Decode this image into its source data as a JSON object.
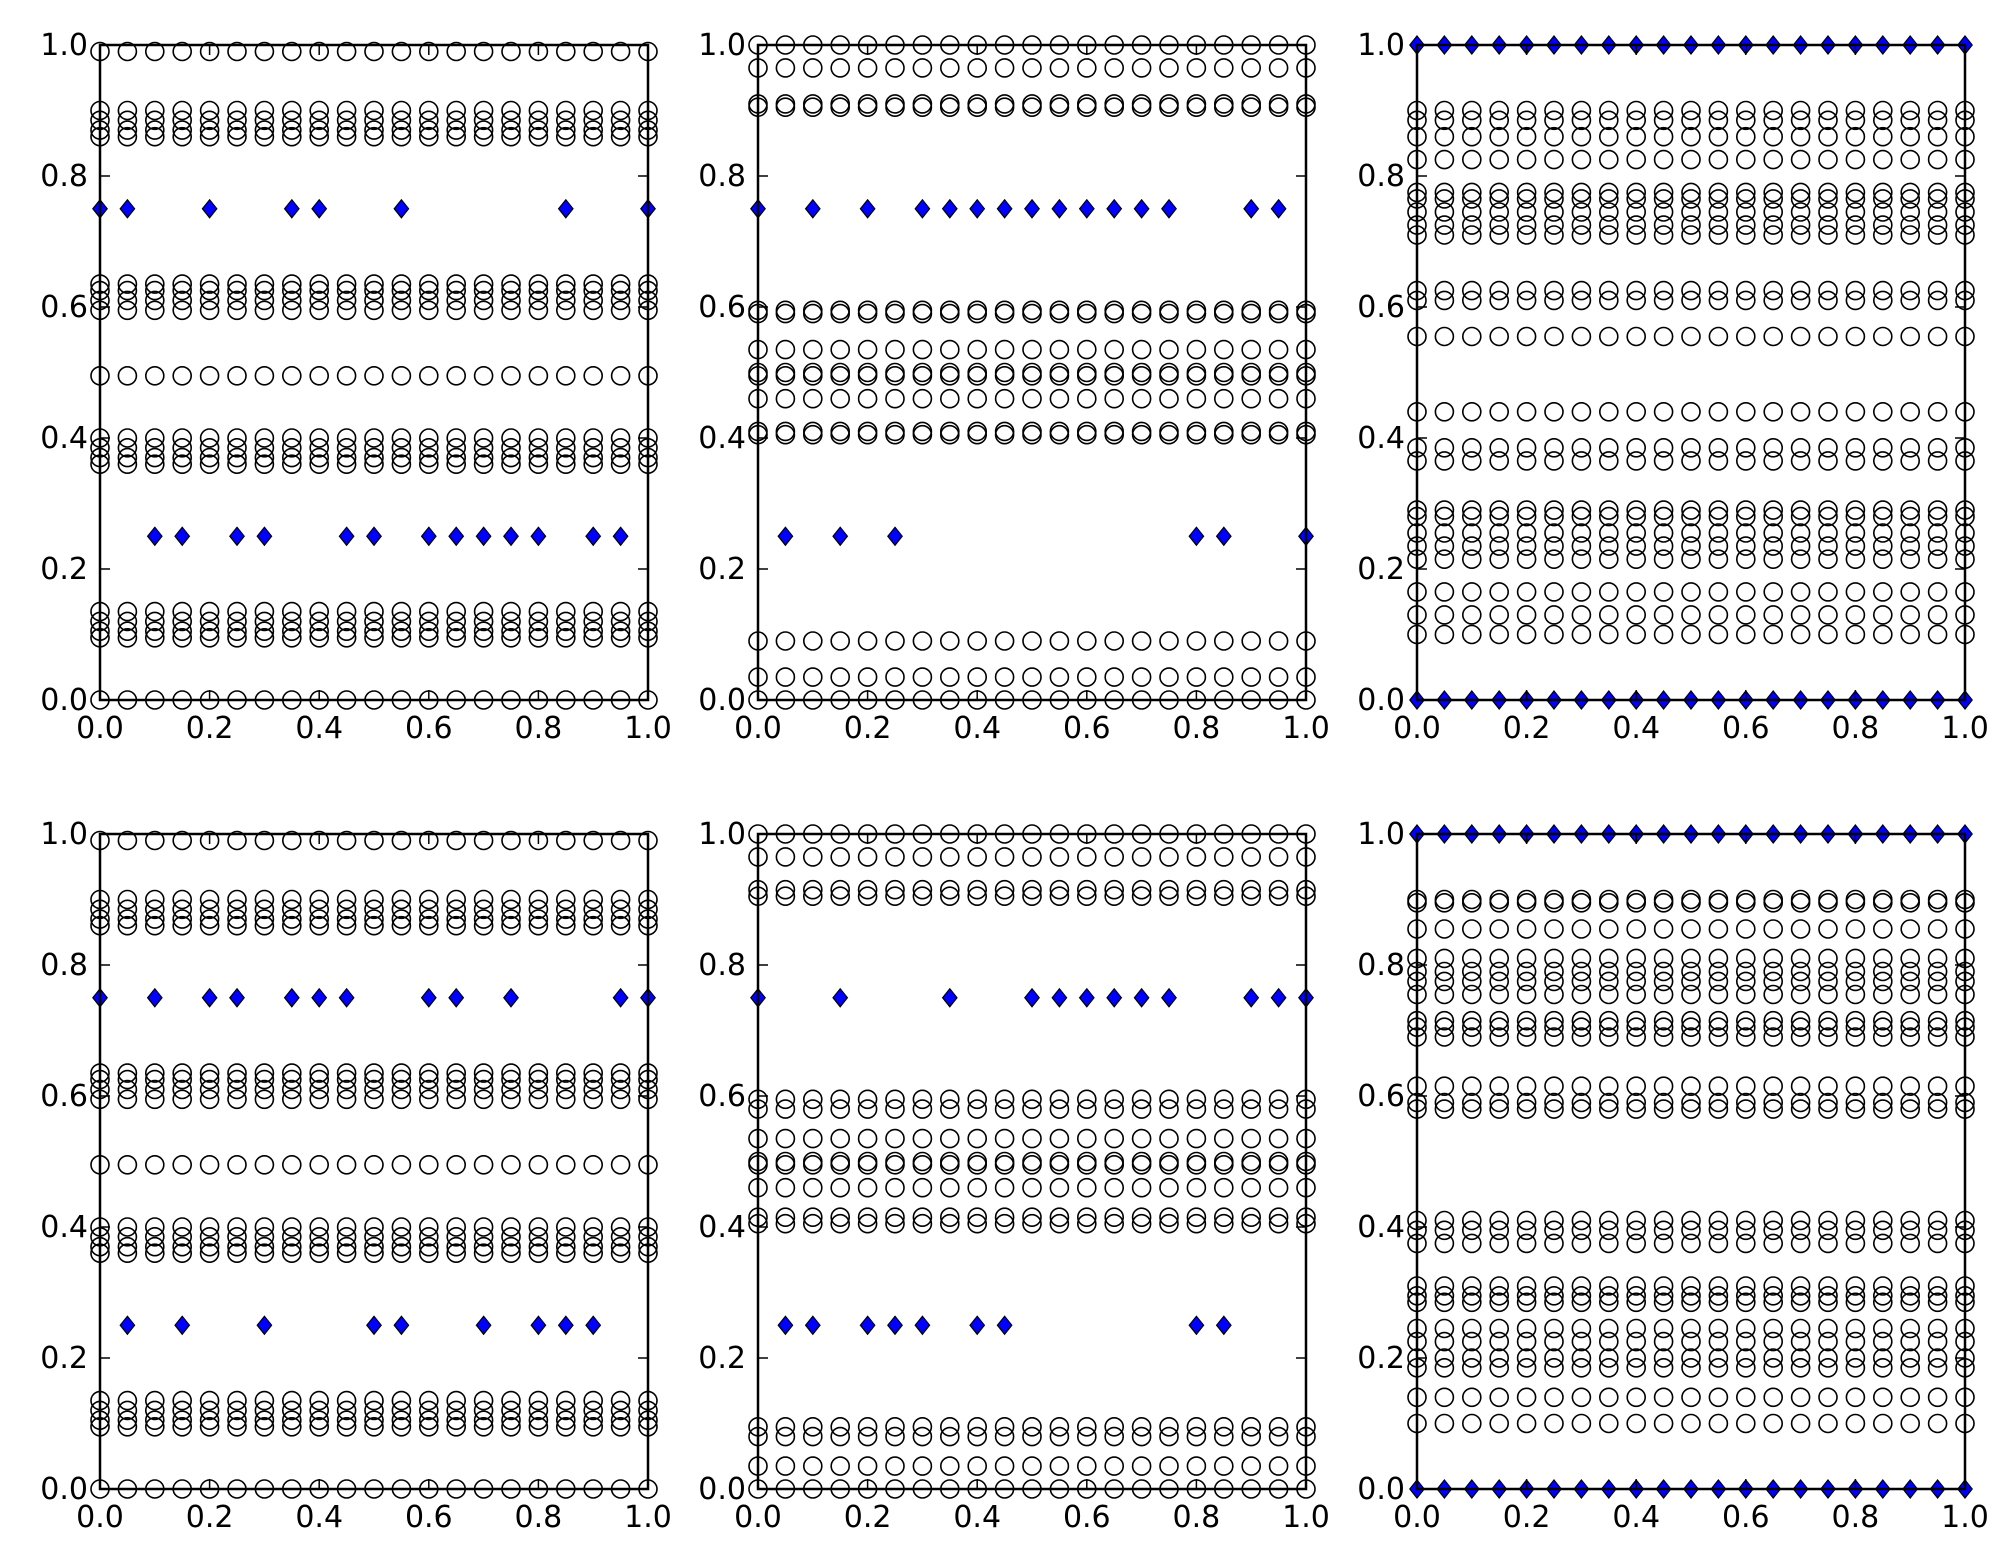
{
  "figure": {
    "background": "#ffffff",
    "axis_color": "#000000"
  },
  "marker_style": {
    "circle": {
      "shape": "circle",
      "fill": "none",
      "stroke": "#000000"
    },
    "diamond": {
      "shape": "diamond",
      "fill": "#0000ff",
      "stroke": "#000000"
    }
  },
  "chart_data": [
    {
      "type": "scatter",
      "panel": "top-left",
      "xlim": [
        0,
        1
      ],
      "ylim": [
        0,
        1
      ],
      "xticks": [
        "0.0",
        "0.2",
        "0.4",
        "0.6",
        "0.8",
        "1.0"
      ],
      "yticks": [
        "0.0",
        "0.2",
        "0.4",
        "0.6",
        "0.8",
        "1.0"
      ],
      "x": [
        0.0,
        0.05,
        0.1,
        0.15,
        0.2,
        0.25,
        0.3,
        0.35,
        0.4,
        0.45,
        0.5,
        0.55,
        0.6,
        0.65,
        0.7,
        0.75,
        0.8,
        0.85,
        0.9,
        0.95,
        1.0
      ],
      "circle_levels_y": [
        0.0,
        0.095,
        0.105,
        0.12,
        0.135,
        0.36,
        0.37,
        0.385,
        0.4,
        0.495,
        0.595,
        0.61,
        0.625,
        0.635,
        0.86,
        0.87,
        0.885,
        0.9,
        0.99
      ],
      "diamond_points": [
        {
          "x": 0.0,
          "y": 0.75
        },
        {
          "x": 0.05,
          "y": 0.75
        },
        {
          "x": 0.2,
          "y": 0.75
        },
        {
          "x": 0.35,
          "y": 0.75
        },
        {
          "x": 0.4,
          "y": 0.75
        },
        {
          "x": 0.55,
          "y": 0.75
        },
        {
          "x": 0.85,
          "y": 0.75
        },
        {
          "x": 1.0,
          "y": 0.75
        },
        {
          "x": 0.1,
          "y": 0.25
        },
        {
          "x": 0.15,
          "y": 0.25
        },
        {
          "x": 0.25,
          "y": 0.25
        },
        {
          "x": 0.3,
          "y": 0.25
        },
        {
          "x": 0.45,
          "y": 0.25
        },
        {
          "x": 0.5,
          "y": 0.25
        },
        {
          "x": 0.6,
          "y": 0.25
        },
        {
          "x": 0.65,
          "y": 0.25
        },
        {
          "x": 0.7,
          "y": 0.25
        },
        {
          "x": 0.75,
          "y": 0.25
        },
        {
          "x": 0.8,
          "y": 0.25
        },
        {
          "x": 0.9,
          "y": 0.25
        },
        {
          "x": 0.95,
          "y": 0.25
        }
      ]
    },
    {
      "type": "scatter",
      "panel": "top-middle",
      "xlim": [
        0,
        1
      ],
      "ylim": [
        0,
        1
      ],
      "xticks": [
        "0.0",
        "0.2",
        "0.4",
        "0.6",
        "0.8",
        "1.0"
      ],
      "yticks": [
        "0.0",
        "0.2",
        "0.4",
        "0.6",
        "0.8",
        "1.0"
      ],
      "x": [
        0.0,
        0.05,
        0.1,
        0.15,
        0.2,
        0.25,
        0.3,
        0.35,
        0.4,
        0.45,
        0.5,
        0.55,
        0.6,
        0.65,
        0.7,
        0.75,
        0.8,
        0.85,
        0.9,
        0.95,
        1.0
      ],
      "circle_levels_y": [
        0.0,
        0.035,
        0.09,
        0.405,
        0.41,
        0.46,
        0.495,
        0.5,
        0.535,
        0.59,
        0.595,
        0.905,
        0.91,
        0.965,
        1.0
      ],
      "diamond_points": [
        {
          "x": 0.0,
          "y": 0.75
        },
        {
          "x": 0.1,
          "y": 0.75
        },
        {
          "x": 0.2,
          "y": 0.75
        },
        {
          "x": 0.3,
          "y": 0.75
        },
        {
          "x": 0.35,
          "y": 0.75
        },
        {
          "x": 0.4,
          "y": 0.75
        },
        {
          "x": 0.45,
          "y": 0.75
        },
        {
          "x": 0.5,
          "y": 0.75
        },
        {
          "x": 0.55,
          "y": 0.75
        },
        {
          "x": 0.6,
          "y": 0.75
        },
        {
          "x": 0.65,
          "y": 0.75
        },
        {
          "x": 0.7,
          "y": 0.75
        },
        {
          "x": 0.75,
          "y": 0.75
        },
        {
          "x": 0.9,
          "y": 0.75
        },
        {
          "x": 0.95,
          "y": 0.75
        },
        {
          "x": 0.05,
          "y": 0.25
        },
        {
          "x": 0.15,
          "y": 0.25
        },
        {
          "x": 0.25,
          "y": 0.25
        },
        {
          "x": 0.8,
          "y": 0.25
        },
        {
          "x": 0.85,
          "y": 0.25
        },
        {
          "x": 1.0,
          "y": 0.25
        }
      ]
    },
    {
      "type": "scatter",
      "panel": "top-right",
      "xlim": [
        0,
        1
      ],
      "ylim": [
        0,
        1
      ],
      "xticks": [
        "0.0",
        "0.2",
        "0.4",
        "0.6",
        "0.8",
        "1.0"
      ],
      "yticks": [
        "0.0",
        "0.2",
        "0.4",
        "0.6",
        "0.8",
        "1.0"
      ],
      "x": [
        0.0,
        0.05,
        0.1,
        0.15,
        0.2,
        0.25,
        0.3,
        0.35,
        0.4,
        0.45,
        0.5,
        0.55,
        0.6,
        0.65,
        0.7,
        0.75,
        0.8,
        0.85,
        0.9,
        0.95,
        1.0
      ],
      "circle_levels_y": [
        0.1,
        0.13,
        0.165,
        0.215,
        0.235,
        0.255,
        0.28,
        0.29,
        0.365,
        0.385,
        0.44,
        0.555,
        0.61,
        0.625,
        0.71,
        0.725,
        0.745,
        0.765,
        0.775,
        0.825,
        0.86,
        0.885,
        0.9
      ],
      "diamond_points": [
        {
          "x": 0.0,
          "y": 1.0
        },
        {
          "x": 0.05,
          "y": 1.0
        },
        {
          "x": 0.1,
          "y": 1.0
        },
        {
          "x": 0.15,
          "y": 1.0
        },
        {
          "x": 0.2,
          "y": 1.0
        },
        {
          "x": 0.25,
          "y": 1.0
        },
        {
          "x": 0.3,
          "y": 1.0
        },
        {
          "x": 0.35,
          "y": 1.0
        },
        {
          "x": 0.4,
          "y": 1.0
        },
        {
          "x": 0.45,
          "y": 1.0
        },
        {
          "x": 0.5,
          "y": 1.0
        },
        {
          "x": 0.55,
          "y": 1.0
        },
        {
          "x": 0.6,
          "y": 1.0
        },
        {
          "x": 0.65,
          "y": 1.0
        },
        {
          "x": 0.7,
          "y": 1.0
        },
        {
          "x": 0.75,
          "y": 1.0
        },
        {
          "x": 0.8,
          "y": 1.0
        },
        {
          "x": 0.85,
          "y": 1.0
        },
        {
          "x": 0.9,
          "y": 1.0
        },
        {
          "x": 0.95,
          "y": 1.0
        },
        {
          "x": 1.0,
          "y": 1.0
        },
        {
          "x": 0.0,
          "y": 0.0
        },
        {
          "x": 0.05,
          "y": 0.0
        },
        {
          "x": 0.1,
          "y": 0.0
        },
        {
          "x": 0.15,
          "y": 0.0
        },
        {
          "x": 0.2,
          "y": 0.0
        },
        {
          "x": 0.25,
          "y": 0.0
        },
        {
          "x": 0.3,
          "y": 0.0
        },
        {
          "x": 0.35,
          "y": 0.0
        },
        {
          "x": 0.4,
          "y": 0.0
        },
        {
          "x": 0.45,
          "y": 0.0
        },
        {
          "x": 0.5,
          "y": 0.0
        },
        {
          "x": 0.55,
          "y": 0.0
        },
        {
          "x": 0.6,
          "y": 0.0
        },
        {
          "x": 0.65,
          "y": 0.0
        },
        {
          "x": 0.7,
          "y": 0.0
        },
        {
          "x": 0.75,
          "y": 0.0
        },
        {
          "x": 0.8,
          "y": 0.0
        },
        {
          "x": 0.85,
          "y": 0.0
        },
        {
          "x": 0.9,
          "y": 0.0
        },
        {
          "x": 0.95,
          "y": 0.0
        },
        {
          "x": 1.0,
          "y": 0.0
        }
      ]
    },
    {
      "type": "scatter",
      "panel": "bottom-left",
      "xlim": [
        0,
        1
      ],
      "ylim": [
        0,
        1
      ],
      "xticks": [
        "0.0",
        "0.2",
        "0.4",
        "0.6",
        "0.8",
        "1.0"
      ],
      "yticks": [
        "0.0",
        "0.2",
        "0.4",
        "0.6",
        "0.8",
        "1.0"
      ],
      "x": [
        0.0,
        0.05,
        0.1,
        0.15,
        0.2,
        0.25,
        0.3,
        0.35,
        0.4,
        0.45,
        0.5,
        0.55,
        0.6,
        0.65,
        0.7,
        0.75,
        0.8,
        0.85,
        0.9,
        0.95,
        1.0
      ],
      "circle_levels_y": [
        0.0,
        0.095,
        0.105,
        0.12,
        0.135,
        0.36,
        0.37,
        0.385,
        0.4,
        0.495,
        0.595,
        0.61,
        0.625,
        0.635,
        0.86,
        0.87,
        0.885,
        0.9,
        0.99
      ],
      "diamond_points": [
        {
          "x": 0.0,
          "y": 0.75
        },
        {
          "x": 0.1,
          "y": 0.75
        },
        {
          "x": 0.2,
          "y": 0.75
        },
        {
          "x": 0.25,
          "y": 0.75
        },
        {
          "x": 0.35,
          "y": 0.75
        },
        {
          "x": 0.4,
          "y": 0.75
        },
        {
          "x": 0.45,
          "y": 0.75
        },
        {
          "x": 0.6,
          "y": 0.75
        },
        {
          "x": 0.65,
          "y": 0.75
        },
        {
          "x": 0.75,
          "y": 0.75
        },
        {
          "x": 0.95,
          "y": 0.75
        },
        {
          "x": 1.0,
          "y": 0.75
        },
        {
          "x": 0.05,
          "y": 0.25
        },
        {
          "x": 0.15,
          "y": 0.25
        },
        {
          "x": 0.3,
          "y": 0.25
        },
        {
          "x": 0.5,
          "y": 0.25
        },
        {
          "x": 0.55,
          "y": 0.25
        },
        {
          "x": 0.7,
          "y": 0.25
        },
        {
          "x": 0.8,
          "y": 0.25
        },
        {
          "x": 0.85,
          "y": 0.25
        },
        {
          "x": 0.9,
          "y": 0.25
        }
      ]
    },
    {
      "type": "scatter",
      "panel": "bottom-middle",
      "xlim": [
        0,
        1
      ],
      "ylim": [
        0,
        1
      ],
      "xticks": [
        "0.0",
        "0.2",
        "0.4",
        "0.6",
        "0.8",
        "1.0"
      ],
      "yticks": [
        "0.0",
        "0.2",
        "0.4",
        "0.6",
        "0.8",
        "1.0"
      ],
      "x": [
        0.0,
        0.05,
        0.1,
        0.15,
        0.2,
        0.25,
        0.3,
        0.35,
        0.4,
        0.45,
        0.5,
        0.55,
        0.6,
        0.65,
        0.7,
        0.75,
        0.8,
        0.85,
        0.9,
        0.95,
        1.0
      ],
      "circle_levels_y": [
        0.0,
        0.035,
        0.08,
        0.095,
        0.405,
        0.415,
        0.46,
        0.495,
        0.5,
        0.535,
        0.58,
        0.595,
        0.905,
        0.915,
        0.965,
        1.0
      ],
      "diamond_points": [
        {
          "x": 0.0,
          "y": 0.75
        },
        {
          "x": 0.15,
          "y": 0.75
        },
        {
          "x": 0.35,
          "y": 0.75
        },
        {
          "x": 0.5,
          "y": 0.75
        },
        {
          "x": 0.55,
          "y": 0.75
        },
        {
          "x": 0.6,
          "y": 0.75
        },
        {
          "x": 0.65,
          "y": 0.75
        },
        {
          "x": 0.7,
          "y": 0.75
        },
        {
          "x": 0.75,
          "y": 0.75
        },
        {
          "x": 0.9,
          "y": 0.75
        },
        {
          "x": 0.95,
          "y": 0.75
        },
        {
          "x": 1.0,
          "y": 0.75
        },
        {
          "x": 0.05,
          "y": 0.25
        },
        {
          "x": 0.1,
          "y": 0.25
        },
        {
          "x": 0.2,
          "y": 0.25
        },
        {
          "x": 0.25,
          "y": 0.25
        },
        {
          "x": 0.3,
          "y": 0.25
        },
        {
          "x": 0.4,
          "y": 0.25
        },
        {
          "x": 0.45,
          "y": 0.25
        },
        {
          "x": 0.8,
          "y": 0.25
        },
        {
          "x": 0.85,
          "y": 0.25
        }
      ]
    },
    {
      "type": "scatter",
      "panel": "bottom-right",
      "xlim": [
        0,
        1
      ],
      "ylim": [
        0,
        1
      ],
      "xticks": [
        "0.0",
        "0.2",
        "0.4",
        "0.6",
        "0.8",
        "1.0"
      ],
      "yticks": [
        "0.0",
        "0.2",
        "0.4",
        "0.6",
        "0.8",
        "1.0"
      ],
      "x": [
        0.0,
        0.05,
        0.1,
        0.15,
        0.2,
        0.25,
        0.3,
        0.35,
        0.4,
        0.45,
        0.5,
        0.55,
        0.6,
        0.65,
        0.7,
        0.75,
        0.8,
        0.85,
        0.9,
        0.95,
        1.0
      ],
      "circle_levels_y": [
        0.1,
        0.14,
        0.185,
        0.2,
        0.225,
        0.245,
        0.285,
        0.295,
        0.31,
        0.375,
        0.395,
        0.41,
        0.58,
        0.59,
        0.615,
        0.69,
        0.705,
        0.715,
        0.755,
        0.775,
        0.79,
        0.81,
        0.855,
        0.895,
        0.9
      ],
      "diamond_points": [
        {
          "x": 0.0,
          "y": 1.0
        },
        {
          "x": 0.05,
          "y": 1.0
        },
        {
          "x": 0.1,
          "y": 1.0
        },
        {
          "x": 0.15,
          "y": 1.0
        },
        {
          "x": 0.2,
          "y": 1.0
        },
        {
          "x": 0.25,
          "y": 1.0
        },
        {
          "x": 0.3,
          "y": 1.0
        },
        {
          "x": 0.35,
          "y": 1.0
        },
        {
          "x": 0.4,
          "y": 1.0
        },
        {
          "x": 0.45,
          "y": 1.0
        },
        {
          "x": 0.5,
          "y": 1.0
        },
        {
          "x": 0.55,
          "y": 1.0
        },
        {
          "x": 0.6,
          "y": 1.0
        },
        {
          "x": 0.65,
          "y": 1.0
        },
        {
          "x": 0.7,
          "y": 1.0
        },
        {
          "x": 0.75,
          "y": 1.0
        },
        {
          "x": 0.8,
          "y": 1.0
        },
        {
          "x": 0.85,
          "y": 1.0
        },
        {
          "x": 0.9,
          "y": 1.0
        },
        {
          "x": 0.95,
          "y": 1.0
        },
        {
          "x": 1.0,
          "y": 1.0
        },
        {
          "x": 0.0,
          "y": 0.0
        },
        {
          "x": 0.05,
          "y": 0.0
        },
        {
          "x": 0.1,
          "y": 0.0
        },
        {
          "x": 0.15,
          "y": 0.0
        },
        {
          "x": 0.2,
          "y": 0.0
        },
        {
          "x": 0.25,
          "y": 0.0
        },
        {
          "x": 0.3,
          "y": 0.0
        },
        {
          "x": 0.35,
          "y": 0.0
        },
        {
          "x": 0.4,
          "y": 0.0
        },
        {
          "x": 0.45,
          "y": 0.0
        },
        {
          "x": 0.5,
          "y": 0.0
        },
        {
          "x": 0.55,
          "y": 0.0
        },
        {
          "x": 0.6,
          "y": 0.0
        },
        {
          "x": 0.65,
          "y": 0.0
        },
        {
          "x": 0.7,
          "y": 0.0
        },
        {
          "x": 0.75,
          "y": 0.0
        },
        {
          "x": 0.8,
          "y": 0.0
        },
        {
          "x": 0.85,
          "y": 0.0
        },
        {
          "x": 0.9,
          "y": 0.0
        },
        {
          "x": 0.95,
          "y": 0.0
        },
        {
          "x": 1.0,
          "y": 0.0
        }
      ]
    }
  ]
}
